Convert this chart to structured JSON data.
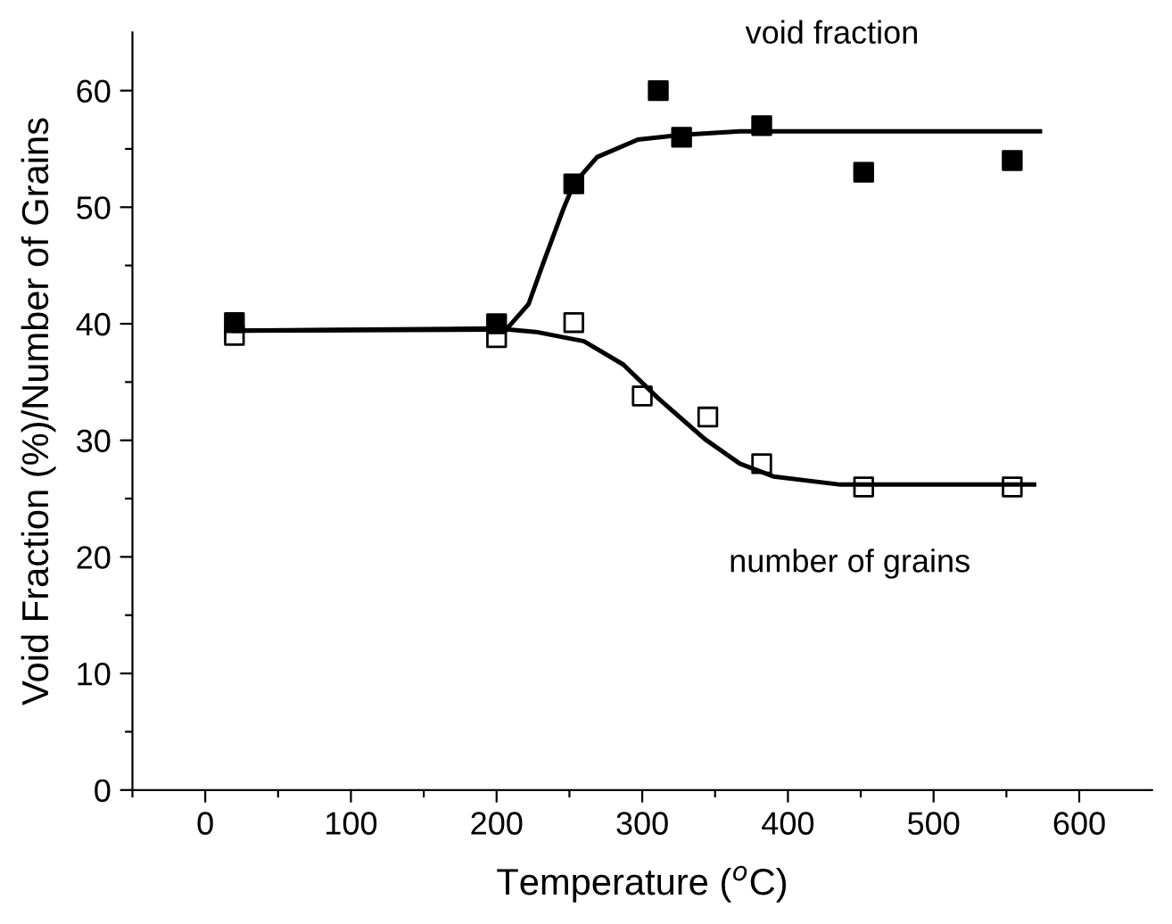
{
  "chart_data": {
    "type": "scatter",
    "xlabel": "Temperature ($^{o}$C)",
    "ylabel": "Void Fraction (%)/Number of Grains",
    "xlim": [
      -50,
      650
    ],
    "ylim": [
      0,
      65
    ],
    "xticks": [
      {
        "value": -50,
        "label": null
      },
      0,
      {
        "value": 50,
        "label": null
      },
      100,
      {
        "value": 150,
        "label": null
      },
      200,
      {
        "value": 250,
        "label": null
      },
      300,
      {
        "value": 350,
        "label": null
      },
      400,
      {
        "value": 450,
        "label": null
      },
      500,
      {
        "value": 550,
        "label": null
      },
      600
    ],
    "yticks": [
      0,
      {
        "value": 5,
        "label": null
      },
      10,
      {
        "value": 15,
        "label": null
      },
      20,
      {
        "value": 25,
        "label": null
      },
      30,
      {
        "value": 35,
        "label": null
      },
      40,
      {
        "value": 45,
        "label": null
      },
      50,
      {
        "value": 55,
        "label": null
      },
      60
    ],
    "grid": false,
    "legend": false,
    "marker": "square",
    "series": [
      {
        "color": "#000000",
        "x": [
          20,
          200,
          253,
          311,
          327,
          382,
          452,
          554
        ],
        "values": [
          40.1,
          40,
          52,
          60,
          56,
          57,
          53,
          54
        ]
      },
      {
        "color": "#000000",
        "x": [
          20,
          200,
          253,
          300,
          345,
          382,
          452,
          554
        ],
        "values": [
          39,
          38.8,
          40.1,
          33.8,
          32,
          28,
          26,
          26
        ]
      },
      {
        "type": "line",
        "color": "#000000",
        "marker": "none",
        "x": [
          20,
          200,
          208,
          222,
          232,
          246,
          253,
          269,
          297,
          327,
          367,
          573
        ],
        "values": [
          39.4,
          39.5,
          39.7,
          41.7,
          45.2,
          49.9,
          52,
          54.3,
          55.8,
          56.2,
          56.5,
          56.5
        ]
      },
      {
        "type": "line",
        "color": "#000000",
        "marker": "none",
        "x": [
          20,
          200,
          227,
          260,
          287,
          311,
          343,
          367,
          390,
          436,
          569
        ],
        "values": [
          39.4,
          39.6,
          39.3,
          38.5,
          36.5,
          33.6,
          30.1,
          28,
          26.9,
          26.2,
          26.2
        ]
      }
    ],
    "annotations": [
      "void fraction",
      "number of grains"
    ]
  }
}
